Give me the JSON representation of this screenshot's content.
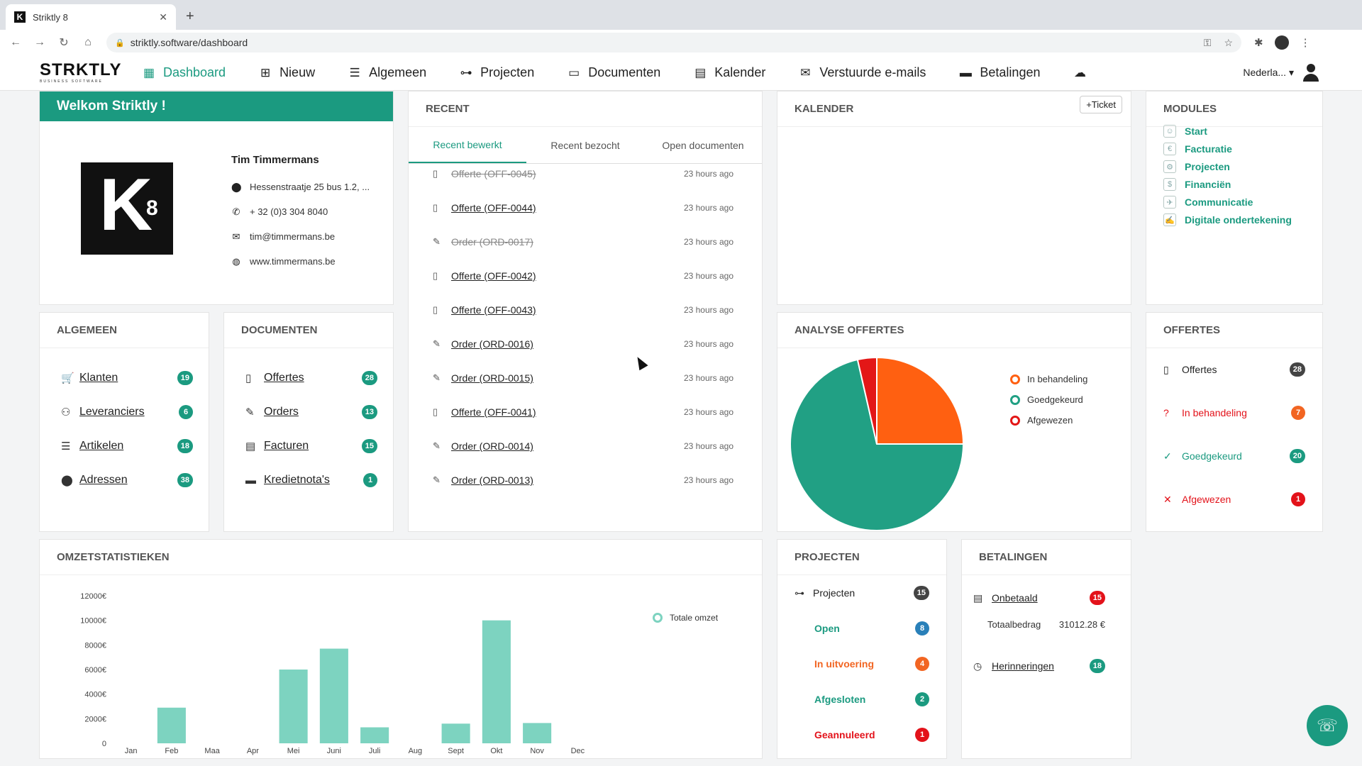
{
  "browser": {
    "tab_title": "Striktly 8",
    "tab_favicon": "K",
    "url": "striktly.software/dashboard"
  },
  "nav": {
    "logo": "STRKTLY",
    "logo_sub": "BUSINESS SOFTWARE",
    "items": [
      {
        "label": "Dashboard",
        "icon": "dashboard-icon"
      },
      {
        "label": "Nieuw",
        "icon": "plus-square-icon"
      },
      {
        "label": "Algemeen",
        "icon": "database-icon"
      },
      {
        "label": "Projecten",
        "icon": "sitemap-icon"
      },
      {
        "label": "Documenten",
        "icon": "folder-open-icon"
      },
      {
        "label": "Kalender",
        "icon": "calendar-icon"
      },
      {
        "label": "Verstuurde e-mails",
        "icon": "envelope-icon"
      },
      {
        "label": "Betalingen",
        "icon": "credit-card-icon"
      }
    ],
    "language": "Nederla..."
  },
  "welcome": {
    "title": "Welkom Striktly !",
    "name": "Tim Timmermans",
    "address": "Hessenstraatje 25 bus 1.2, ...",
    "phone": "+ 32 (0)3 304 8040",
    "email": "tim@timmermans.be",
    "website": "www.timmermans.be",
    "logo_letter": "K",
    "logo_sup": "8"
  },
  "algemeen": {
    "title": "ALGEMEEN",
    "items": [
      {
        "label": "Klanten",
        "count": "19",
        "icon": "cart-icon"
      },
      {
        "label": "Leveranciers",
        "count": "6",
        "icon": "people-carry-icon"
      },
      {
        "label": "Artikelen",
        "count": "18",
        "icon": "list-icon"
      },
      {
        "label": "Adressen",
        "count": "38",
        "icon": "map-marker-icon"
      }
    ]
  },
  "documenten": {
    "title": "DOCUMENTEN",
    "items": [
      {
        "label": "Offertes",
        "count": "28",
        "icon": "file-icon"
      },
      {
        "label": "Orders",
        "count": "13",
        "icon": "file-signature-icon"
      },
      {
        "label": "Facturen",
        "count": "15",
        "icon": "file-invoice-icon"
      },
      {
        "label": "Kredietnota's",
        "count": "1",
        "icon": "credit-card-icon"
      }
    ]
  },
  "recent": {
    "title": "RECENT",
    "tabs": [
      "Recent bewerkt",
      "Recent bezocht",
      "Open documenten"
    ],
    "items": [
      {
        "label": "Offerte (OFF-0045)",
        "time": "23 hours ago",
        "struck": true
      },
      {
        "label": "Offerte (OFF-0044)",
        "time": "23 hours ago",
        "struck": false
      },
      {
        "label": "Order (ORD-0017)",
        "time": "23 hours ago",
        "struck": true
      },
      {
        "label": "Offerte (OFF-0042)",
        "time": "23 hours ago",
        "struck": false
      },
      {
        "label": "Offerte (OFF-0043)",
        "time": "23 hours ago",
        "struck": false
      },
      {
        "label": "Order (ORD-0016)",
        "time": "23 hours ago",
        "struck": false
      },
      {
        "label": "Order (ORD-0015)",
        "time": "23 hours ago",
        "struck": false
      },
      {
        "label": "Offerte (OFF-0041)",
        "time": "23 hours ago",
        "struck": false
      },
      {
        "label": "Order (ORD-0014)",
        "time": "23 hours ago",
        "struck": false
      },
      {
        "label": "Order (ORD-0013)",
        "time": "23 hours ago",
        "struck": false
      }
    ]
  },
  "kalender": {
    "title": "KALENDER",
    "ticket_label": "Ticket"
  },
  "modules": {
    "title": "MODULES",
    "items": [
      "Start",
      "Facturatie",
      "Projecten",
      "Financiën",
      "Communicatie",
      "Digitale ondertekening"
    ]
  },
  "analyse": {
    "title": "ANALYSE OFFERTES",
    "legend": [
      {
        "label": "In behandeling",
        "color": "#ff6011"
      },
      {
        "label": "Goedgekeurd",
        "color": "#21a084"
      },
      {
        "label": "Afgewezen",
        "color": "#e31717"
      }
    ]
  },
  "offertes": {
    "title": "OFFERTES",
    "items": [
      {
        "label": "Offertes",
        "count": "28",
        "color": "#222",
        "badge": "#444",
        "icon": "file-icon"
      },
      {
        "label": "In behandeling",
        "count": "7",
        "color": "#e3121a",
        "badge": "#f26522",
        "icon": "question-circle-icon"
      },
      {
        "label": "Goedgekeurd",
        "count": "20",
        "color": "#1b9a80",
        "badge": "#1b9a80",
        "icon": "check-circle-icon"
      },
      {
        "label": "Afgewezen",
        "count": "1",
        "color": "#e3121a",
        "badge": "#e3121a",
        "icon": "times-circle-icon"
      }
    ]
  },
  "omzet": {
    "title": "OMZETSTATISTIEKEN"
  },
  "projecten": {
    "title": "PROJECTEN",
    "items": [
      {
        "label": "Projecten",
        "count": "15",
        "color": "#222",
        "badge": "#444"
      },
      {
        "label": "Open",
        "count": "8",
        "color": "#1b9a80",
        "badge": "#2980b9"
      },
      {
        "label": "In uitvoering",
        "count": "4",
        "color": "#f26522",
        "badge": "#f26522"
      },
      {
        "label": "Afgesloten",
        "count": "2",
        "color": "#1b9a80",
        "badge": "#1b9a80"
      },
      {
        "label": "Geannuleerd",
        "count": "1",
        "color": "#e3121a",
        "badge": "#e3121a"
      }
    ]
  },
  "betalingen": {
    "title": "BETALINGEN",
    "onbetaald_label": "Onbetaald",
    "onbetaald_count": "15",
    "totaal_label": "Totaalbedrag",
    "totaal_value": "31012.28 €",
    "herinneringen_label": "Herinneringen",
    "herinneringen_count": "18"
  },
  "chart_data": [
    {
      "type": "pie",
      "categories": [
        "In behandeling",
        "Goedgekeurd",
        "Afgewezen"
      ],
      "values": [
        7,
        20,
        1
      ],
      "colors": [
        "#ff6011",
        "#21a084",
        "#e31717"
      ],
      "legend": "right"
    },
    {
      "type": "bar",
      "categories": [
        "Jan",
        "Feb",
        "Maa",
        "Apr",
        "Mei",
        "Juni",
        "Juli",
        "Aug",
        "Sept",
        "Okt",
        "Nov",
        "Dec"
      ],
      "series": [
        {
          "name": "Totale omzet",
          "values": [
            0,
            2900,
            0,
            0,
            6000,
            7700,
            1300,
            0,
            1600,
            10000,
            1650,
            0
          ]
        }
      ],
      "yticks": [
        "0",
        "2000€",
        "4000€",
        "6000€",
        "8000€",
        "10000€",
        "12000€"
      ],
      "ylim": [
        0,
        12000
      ],
      "color": "#7dd3c0",
      "legend": "top-right"
    }
  ]
}
